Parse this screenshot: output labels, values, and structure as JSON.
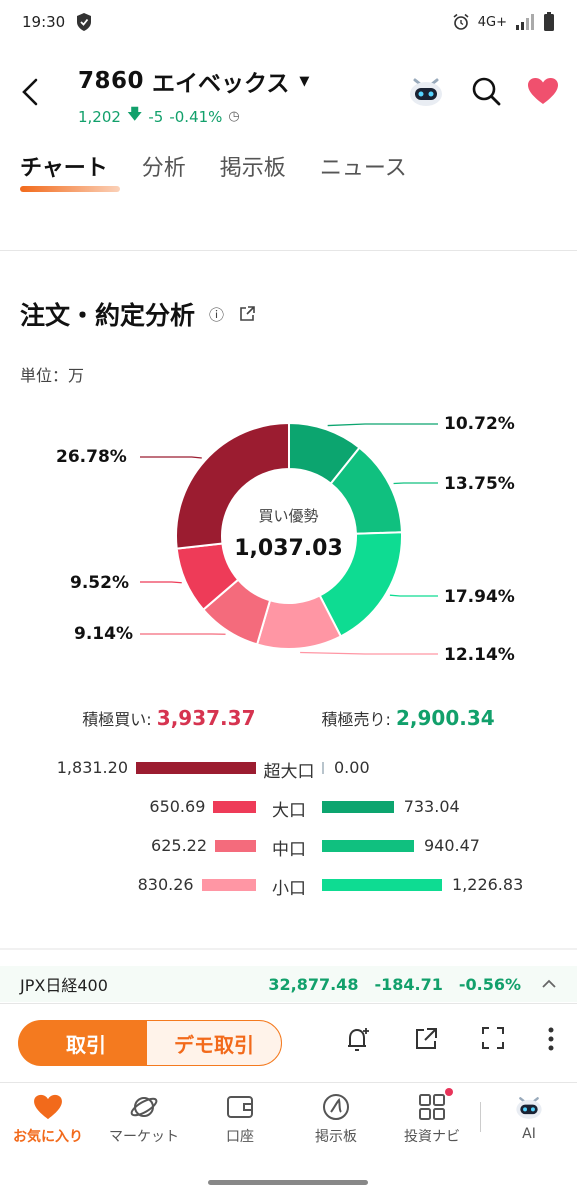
{
  "status": {
    "time": "19:30",
    "network": "4G+"
  },
  "header": {
    "code": "7860",
    "name": "エイベックス",
    "price": "1,202",
    "change": "-5",
    "change_pct": "-0.41%"
  },
  "tabs": [
    "チャート",
    "分析",
    "掲示板",
    "ニュース"
  ],
  "section": {
    "title": "注文・約定分析",
    "unit": "単位：万",
    "center_label": "買い優勢",
    "center_value": "1,037.03"
  },
  "chart_data": {
    "type": "pie",
    "title": "注文・約定分析",
    "center_label": "買い優勢",
    "center_value": "1,037.03",
    "slices": [
      {
        "label": "10.72%",
        "value": 10.72,
        "color": "#0ca56f"
      },
      {
        "label": "13.75%",
        "value": 13.75,
        "color": "#10c07f"
      },
      {
        "label": "17.94%",
        "value": 17.94,
        "color": "#0edc92"
      },
      {
        "label": "12.14%",
        "value": 12.14,
        "color": "#ff96a4"
      },
      {
        "label": "9.14%",
        "value": 9.14,
        "color": "#f46b7c"
      },
      {
        "label": "9.52%",
        "value": 9.52,
        "color": "#ee3b58"
      },
      {
        "label": "26.78%",
        "value": 26.78,
        "color": "#9b1c30"
      }
    ]
  },
  "totals": {
    "buy_label": "積極買い:",
    "buy_value": "3,937.37",
    "sell_label": "積極売り:",
    "sell_value": "2,900.34"
  },
  "flows": [
    {
      "label": "超大口",
      "buy": 1831.2,
      "buy_text": "1,831.20",
      "sell": 0.0,
      "sell_text": "0.00",
      "buy_color": "#9b1c30",
      "sell_color": "#0ca56f"
    },
    {
      "label": "大口",
      "buy": 650.69,
      "buy_text": "650.69",
      "sell": 733.04,
      "sell_text": "733.04",
      "buy_color": "#ee3b58",
      "sell_color": "#0ca56f"
    },
    {
      "label": "中口",
      "buy": 625.22,
      "buy_text": "625.22",
      "sell": 940.47,
      "sell_text": "940.47",
      "buy_color": "#f46b7c",
      "sell_color": "#10c07f"
    },
    {
      "label": "小口",
      "buy": 830.26,
      "buy_text": "830.26",
      "sell": 1226.83,
      "sell_text": "1,226.83",
      "buy_color": "#ff96a4",
      "sell_color": "#0edc92"
    }
  ],
  "index": {
    "name": "JPX日経400",
    "value": "32,877.48",
    "change": "-184.71",
    "pct": "-0.56%"
  },
  "actions": {
    "trade": "取引",
    "demo": "デモ取引"
  },
  "nav": [
    "お気に入り",
    "マーケット",
    "口座",
    "掲示板",
    "投資ナビ",
    "AI"
  ]
}
